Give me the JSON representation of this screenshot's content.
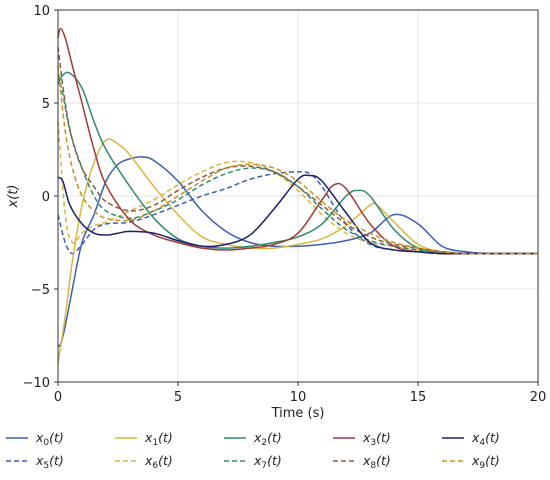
{
  "chart_data": {
    "type": "line",
    "xlabel": "Time (s)",
    "ylabel": "x(t)",
    "xlim": [
      0,
      20
    ],
    "ylim": [
      -10,
      10
    ],
    "xticks": [
      0,
      5,
      10,
      15,
      20
    ],
    "yticks": [
      -10,
      -5,
      0,
      5,
      10
    ],
    "xtick_labels": [
      "0",
      "5",
      "10",
      "15",
      "20"
    ],
    "ytick_labels": [
      "−10",
      "−5",
      "0",
      "5",
      "10"
    ],
    "grid": true,
    "legend_position": "bottom",
    "series": [
      {
        "name": "x0(t)",
        "color": "#3a5fb5",
        "dash": false,
        "x": [
          0,
          0.1,
          0.3,
          0.6,
          1,
          1.5,
          2,
          2.5,
          3,
          3.5,
          4,
          5,
          6,
          7,
          8,
          9,
          10,
          11,
          12,
          13,
          14,
          15,
          16,
          17,
          18,
          19,
          20
        ],
        "y": [
          -8,
          -8,
          -7,
          -5,
          -2.5,
          -1,
          0.8,
          1.7,
          2,
          2.1,
          1.9,
          0.8,
          -0.8,
          -1.9,
          -2.5,
          -2.7,
          -2.7,
          -2.6,
          -2.4,
          -2,
          -1,
          -1.5,
          -2.7,
          -3,
          -3.1,
          -3.1,
          -3.1
        ]
      },
      {
        "name": "x5(t)",
        "color": "#3a5fb5",
        "dash": true,
        "x": [
          0,
          0.3,
          0.6,
          1,
          1.5,
          2,
          3,
          4,
          5,
          6,
          7,
          8,
          9,
          10,
          10.5,
          11,
          12,
          13,
          14,
          15,
          16,
          17,
          18,
          19,
          20
        ],
        "y": [
          -1,
          -2.5,
          -3.1,
          -2.6,
          -1.8,
          -1.5,
          -1.4,
          -1,
          -0.5,
          0,
          0.4,
          0.9,
          1.2,
          1.3,
          1.2,
          0.5,
          -1.5,
          -2.6,
          -2.9,
          -3,
          -3.05,
          -3.1,
          -3.1,
          -3.1,
          -3.1
        ]
      },
      {
        "name": "x1(t)",
        "color": "#dbb53e",
        "dash": false,
        "x": [
          0,
          0.3,
          0.6,
          1,
          1.5,
          2,
          2.5,
          3,
          4,
          5,
          6,
          7,
          8,
          9,
          10,
          11,
          12,
          13,
          13.3,
          14,
          15,
          16,
          17,
          18,
          19,
          20
        ],
        "y": [
          -9,
          -6.5,
          -3.5,
          -0.5,
          1.8,
          3,
          2.8,
          2.2,
          0.5,
          -1,
          -2.2,
          -2.6,
          -2.8,
          -2.8,
          -2.6,
          -2.3,
          -1.6,
          -0.5,
          -0.5,
          -1.4,
          -2.6,
          -3,
          -3.1,
          -3.1,
          -3.1,
          -3.1
        ]
      },
      {
        "name": "x6(t)",
        "color": "#dbb53e",
        "dash": true,
        "x": [
          0,
          0.3,
          0.6,
          1,
          1.5,
          2,
          3,
          4,
          5,
          6,
          7,
          8,
          9,
          10,
          11,
          12,
          13,
          14,
          15,
          16,
          17,
          18,
          19,
          20
        ],
        "y": [
          4,
          -1,
          -2.5,
          -2,
          -1.6,
          -1.4,
          -0.8,
          -0.2,
          0.6,
          1.3,
          1.8,
          1.8,
          1.3,
          0.3,
          -1,
          -2,
          -2.5,
          -2.7,
          -2.9,
          -3,
          -3.1,
          -3.1,
          -3.1,
          -3.1
        ]
      },
      {
        "name": "x2(t)",
        "color": "#2e8b6f",
        "dash": false,
        "x": [
          0,
          0.2,
          0.5,
          1,
          1.5,
          2,
          3,
          4,
          5,
          6,
          7,
          8,
          9,
          10,
          11,
          12,
          12.5,
          13,
          14,
          15,
          16,
          17,
          18,
          19,
          20
        ],
        "y": [
          6,
          6.5,
          6.6,
          5.8,
          4,
          2.5,
          0.5,
          -1.2,
          -2.3,
          -2.7,
          -2.8,
          -2.7,
          -2.5,
          -2.2,
          -1.5,
          0,
          0.3,
          0,
          -1.8,
          -2.8,
          -3,
          -3.1,
          -3.1,
          -3.1,
          -3.1
        ]
      },
      {
        "name": "x7(t)",
        "color": "#2e8b6f",
        "dash": true,
        "x": [
          0,
          0.2,
          0.5,
          1,
          1.5,
          2,
          3,
          4,
          5,
          6,
          7,
          8,
          9,
          10,
          11,
          12,
          13,
          14,
          15,
          16,
          17,
          18,
          19,
          20
        ],
        "y": [
          6.5,
          5.5,
          3.5,
          1.5,
          0,
          -0.8,
          -1.2,
          -0.8,
          -0.2,
          0.6,
          1.2,
          1.5,
          1.3,
          0.5,
          -0.7,
          -1.8,
          -2.4,
          -2.7,
          -2.9,
          -3,
          -3.1,
          -3.1,
          -3.1,
          -3.1
        ]
      },
      {
        "name": "x3(t)",
        "color": "#a33a35",
        "dash": false,
        "x": [
          0,
          0.1,
          0.3,
          0.6,
          1,
          1.5,
          2,
          3,
          4,
          5,
          6,
          7,
          8,
          9,
          10,
          11,
          11.5,
          12,
          13,
          14,
          15,
          16,
          17,
          18,
          19,
          20
        ],
        "y": [
          8.5,
          9,
          8.5,
          7,
          5,
          2.5,
          0.6,
          -1.3,
          -2.1,
          -2.5,
          -2.8,
          -2.9,
          -2.8,
          -2.6,
          -2,
          -0.2,
          0.6,
          0.4,
          -1.5,
          -2.7,
          -3,
          -3.1,
          -3.1,
          -3.1,
          -3.1,
          -3.1
        ]
      },
      {
        "name": "x8(t)",
        "color": "#8b5a3c",
        "dash": true,
        "x": [
          0,
          0.3,
          0.6,
          1,
          1.5,
          2,
          3,
          4,
          5,
          6,
          7,
          8,
          9,
          10,
          11,
          12,
          13,
          14,
          15,
          16,
          17,
          18,
          19,
          20
        ],
        "y": [
          8,
          5,
          3,
          1.5,
          0.5,
          -0.3,
          -0.8,
          -0.5,
          0.3,
          1,
          1.5,
          1.6,
          1.3,
          0.5,
          -0.5,
          -1.5,
          -2.2,
          -2.6,
          -2.8,
          -3,
          -3.1,
          -3.1,
          -3.1,
          -3.1
        ]
      },
      {
        "name": "x4(t)",
        "color": "#1f1f6b",
        "dash": false,
        "x": [
          0,
          0.2,
          0.5,
          1,
          1.5,
          2,
          2.5,
          3,
          4,
          5,
          6,
          7,
          8,
          9,
          10,
          10.5,
          11,
          12,
          13,
          14,
          15,
          16,
          17,
          18,
          19,
          20
        ],
        "y": [
          1,
          0.8,
          -0.5,
          -1.5,
          -2,
          -2.1,
          -2,
          -1.9,
          -2,
          -2.4,
          -2.7,
          -2.6,
          -2.1,
          -0.7,
          0.9,
          1.1,
          0.8,
          -0.9,
          -2.5,
          -2.9,
          -3,
          -3.1,
          -3.1,
          -3.1,
          -3.1,
          -3.1
        ]
      },
      {
        "name": "x9(t)",
        "color": "#c8901e",
        "dash": true,
        "x": [
          0,
          0.3,
          0.6,
          1,
          1.5,
          2,
          3,
          4,
          5,
          6,
          7,
          8,
          9,
          10,
          11,
          12,
          13,
          14,
          15,
          16,
          17,
          18,
          19,
          20
        ],
        "y": [
          7,
          3.5,
          1.5,
          0,
          -0.8,
          -1.2,
          -1.3,
          -0.8,
          0,
          0.8,
          1.5,
          1.7,
          1.5,
          0.8,
          -0.3,
          -1.3,
          -2,
          -2.5,
          -2.8,
          -3,
          -3.1,
          -3.1,
          -3.1,
          -3.1
        ]
      }
    ]
  },
  "legend": {
    "rows": [
      [
        {
          "base": "x",
          "sub": "0",
          "suffix": "(t)"
        },
        {
          "base": "x",
          "sub": "1",
          "suffix": "(t)"
        },
        {
          "base": "x",
          "sub": "2",
          "suffix": "(t)"
        },
        {
          "base": "x",
          "sub": "3",
          "suffix": "(t)"
        },
        {
          "base": "x",
          "sub": "4",
          "suffix": "(t)"
        }
      ],
      [
        {
          "base": "x",
          "sub": "5",
          "suffix": "(t)"
        },
        {
          "base": "x",
          "sub": "6",
          "suffix": "(t)"
        },
        {
          "base": "x",
          "sub": "7",
          "suffix": "(t)"
        },
        {
          "base": "x",
          "sub": "8",
          "suffix": "(t)"
        },
        {
          "base": "x",
          "sub": "9",
          "suffix": "(t)"
        }
      ]
    ]
  }
}
